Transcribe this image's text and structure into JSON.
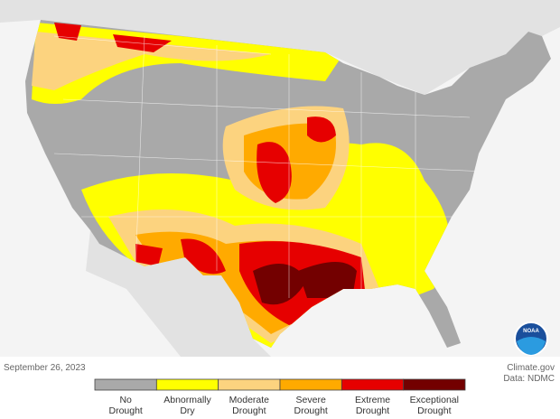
{
  "map": {
    "date": "September 26, 2023",
    "credit": "Climate.gov",
    "source": "Data: NDMC",
    "logo": "NOAA",
    "legend": [
      {
        "lines": [
          "No",
          "Drought"
        ],
        "color": "#a9a9a9"
      },
      {
        "lines": [
          "Abnormally",
          "Dry"
        ],
        "color": "#ffff00"
      },
      {
        "lines": [
          "Moderate",
          "Drought"
        ],
        "color": "#fcd37f"
      },
      {
        "lines": [
          "Severe",
          "Drought"
        ],
        "color": "#ffaa00"
      },
      {
        "lines": [
          "Extreme",
          "Drought"
        ],
        "color": "#e60000"
      },
      {
        "lines": [
          "Exceptional",
          "Drought"
        ],
        "color": "#730000"
      }
    ]
  }
}
